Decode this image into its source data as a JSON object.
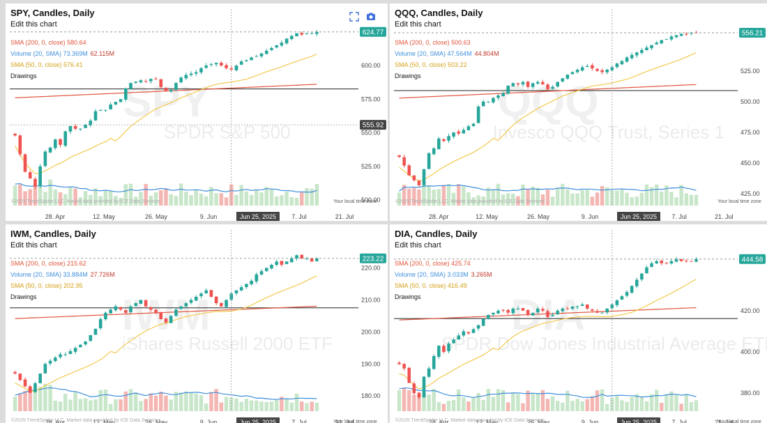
{
  "colors": {
    "up": "#26a69a",
    "down": "#ef5350",
    "sma200": "#e0533b",
    "sma50": "#f2c94c",
    "volume_sma": "#3f8fdc",
    "up_vol": "#c8e6c9",
    "down_vol": "#f4b6b2",
    "price_tag": "#26a69a",
    "crosshair_tag": "#444444"
  },
  "common": {
    "edit_label": "Edit this chart",
    "drawings_label": "Drawings",
    "timezone_label": "Your local time zone",
    "copyright": "©2025 TrendSpider LLC. Market data provided by ICE Data Services",
    "crosshair_date": "Jun 25, 2025",
    "x_ticks": [
      "28. Apr",
      "12. May",
      "26. May",
      "9. Jun",
      "Jun 25, 2025",
      "7. Jul",
      "21. Jul"
    ],
    "icons": [
      "expand-icon",
      "camera-icon"
    ]
  },
  "panels": [
    {
      "id": "spy",
      "title": "SPY, Candles, Daily",
      "watermark_symbol": "SPY",
      "watermark_name": "SPDR S&P 500",
      "sma200_label": "SMA (200, 0, close)",
      "sma200_value": "580.64",
      "volume_label": "Volume (20, SMA)",
      "volume_value": "73.369M",
      "volume_value2": "62.115M",
      "sma50_label": "SMA (50, 0, close)",
      "sma50_value": "576.41",
      "price_tag": "624.77",
      "crosshair_price": "555.92",
      "y_ticks": [
        "600.00",
        "575.00",
        "550.00",
        "525.00",
        "500.00"
      ]
    },
    {
      "id": "qqq",
      "title": "QQQ, Candles, Daily",
      "watermark_symbol": "QQQ",
      "watermark_name": "Invesco QQQ Trust, Series 1",
      "sma200_label": "SMA (200, 0, close)",
      "sma200_value": "500.63",
      "volume_label": "Volume (20, SMA)",
      "volume_value": "47.564M",
      "volume_value2": "44.804M",
      "sma50_label": "SMA (50, 0, close)",
      "sma50_value": "503.22",
      "price_tag": "556.21",
      "crosshair_price": "",
      "y_ticks": [
        "525.00",
        "500.00",
        "475.00",
        "450.00",
        "425.00"
      ]
    },
    {
      "id": "iwm",
      "title": "IWM, Candles, Daily",
      "watermark_symbol": "IWM",
      "watermark_name": "iShares Russell 2000 ETF",
      "sma200_label": "SMA (200, 0, close)",
      "sma200_value": "215.62",
      "volume_label": "Volume (20, SMA)",
      "volume_value": "33.884M",
      "volume_value2": "27.726M",
      "sma50_label": "SMA (50, 0, close)",
      "sma50_value": "202.95",
      "price_tag": "223.22",
      "crosshair_price": "",
      "y_ticks": [
        "220.00",
        "210.00",
        "200.00",
        "190.00",
        "180.00"
      ]
    },
    {
      "id": "dia",
      "title": "DIA, Candles, Daily",
      "watermark_symbol": "DIA",
      "watermark_name": "SPDR Dow Jones Industrial Average ETF",
      "sma200_label": "SMA (200, 0, close)",
      "sma200_value": "425.74",
      "volume_label": "Volume (20, SMA)",
      "volume_value": "3.033M",
      "volume_value2": "3.265M",
      "sma50_label": "SMA (50, 0, close)",
      "sma50_value": "416.49",
      "price_tag": "444.58",
      "crosshair_price": "",
      "y_ticks": [
        "420.00",
        "400.00",
        "380.00"
      ]
    }
  ],
  "chart_data": [
    {
      "type": "candlestick",
      "symbol": "SPY",
      "title": "SPY, Candles, Daily",
      "ylim": [
        500,
        628
      ],
      "closes": [
        548,
        534,
        521,
        516,
        510,
        525,
        536,
        539,
        545,
        541,
        551,
        555,
        553,
        553,
        556,
        559,
        566,
        567,
        567,
        571,
        573,
        575,
        583,
        587,
        588,
        589,
        588,
        590,
        590,
        584,
        581,
        582,
        587,
        591,
        593,
        594,
        595,
        598,
        600,
        601,
        602,
        600,
        598,
        597,
        600,
        603,
        604,
        606,
        607,
        609,
        611,
        613,
        615,
        617,
        620,
        622,
        624,
        623,
        624,
        624,
        625
      ]
    },
    {
      "type": "candlestick",
      "symbol": "QQQ",
      "title": "QQQ, Candles, Daily",
      "ylim": [
        420,
        560
      ],
      "closes": [
        455,
        448,
        440,
        436,
        432,
        445,
        458,
        462,
        470,
        468,
        472,
        475,
        474,
        477,
        480,
        482,
        496,
        500,
        500,
        503,
        505,
        507,
        513,
        515,
        514,
        516,
        512,
        515,
        516,
        514,
        510,
        512,
        516,
        519,
        522,
        524,
        526,
        528,
        529,
        527,
        525,
        524,
        526,
        528,
        531,
        533,
        536,
        538,
        540,
        542,
        544,
        546,
        548,
        550,
        551,
        553,
        554,
        555,
        555,
        556,
        556
      ]
    },
    {
      "type": "candlestick",
      "symbol": "IWM",
      "title": "IWM, Candles, Daily",
      "ylim": [
        177,
        226
      ],
      "closes": [
        187,
        185,
        183,
        181,
        184,
        187,
        190,
        191,
        192,
        193,
        193,
        194,
        195,
        196,
        197,
        199,
        201,
        204,
        206,
        207,
        208,
        207,
        206,
        208,
        209,
        210,
        208,
        207,
        206,
        204,
        203,
        205,
        207,
        208,
        209,
        210,
        211,
        212,
        213,
        211,
        209,
        208,
        210,
        212,
        213,
        214,
        215,
        216,
        218,
        219,
        220,
        221,
        222,
        221,
        222,
        223,
        224,
        223,
        223,
        222,
        223
      ]
    },
    {
      "type": "candlestick",
      "symbol": "DIA",
      "title": "DIA, Candles, Daily",
      "ylim": [
        374,
        450
      ],
      "closes": [
        394,
        392,
        385,
        380,
        378,
        388,
        392,
        398,
        403,
        400,
        404,
        406,
        408,
        410,
        409,
        411,
        413,
        416,
        418,
        419,
        420,
        420,
        419,
        421,
        421,
        420,
        418,
        419,
        421,
        420,
        417,
        418,
        420,
        421,
        421,
        422,
        422,
        423,
        421,
        420,
        419,
        419,
        421,
        423,
        425,
        427,
        429,
        432,
        435,
        438,
        441,
        443,
        444,
        443,
        443,
        444,
        445,
        444,
        444,
        444,
        445
      ]
    }
  ]
}
